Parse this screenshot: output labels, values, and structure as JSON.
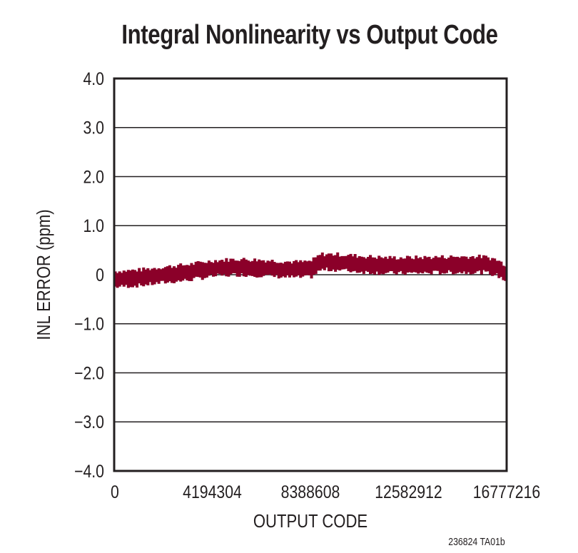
{
  "chart_data": {
    "type": "line",
    "title": "Integral Nonlinearity vs Output Code",
    "xlabel": "OUTPUT CODE",
    "ylabel": "INL ERROR (ppm)",
    "xlim": [
      0,
      16777216
    ],
    "ylim": [
      -4.0,
      4.0
    ],
    "x_ticks": [
      0,
      4194304,
      8388608,
      12582912,
      16777216
    ],
    "x_tick_labels": [
      "0",
      "4194304",
      "8388608",
      "12582912",
      "16777216"
    ],
    "y_ticks": [
      4.0,
      3.0,
      2.0,
      1.0,
      0,
      -1.0,
      -2.0,
      -3.0,
      -4.0
    ],
    "y_tick_labels": [
      "4.0",
      "3.0",
      "2.0",
      "1.0",
      "0",
      "−1.0",
      "−2.0",
      "−3.0",
      "−4.0"
    ],
    "grid": "horizontal",
    "legend": null,
    "series": [
      {
        "name": "INL",
        "color": "#8B0029",
        "band_width_ppm": 0.3,
        "x": [
          0,
          1048576,
          2097152,
          3145728,
          4194304,
          5242880,
          6291456,
          7340032,
          8000000,
          8388608,
          8800000,
          9437184,
          10485760,
          11534336,
          12582912,
          13631488,
          14680064,
          15728640,
          16252928,
          16777216
        ],
        "values": [
          -0.09,
          -0.06,
          0.0,
          0.05,
          0.13,
          0.16,
          0.14,
          0.11,
          0.1,
          0.12,
          0.26,
          0.26,
          0.22,
          0.19,
          0.19,
          0.2,
          0.21,
          0.21,
          0.16,
          0.02
        ]
      }
    ],
    "footnote": "236824 TA01b"
  }
}
